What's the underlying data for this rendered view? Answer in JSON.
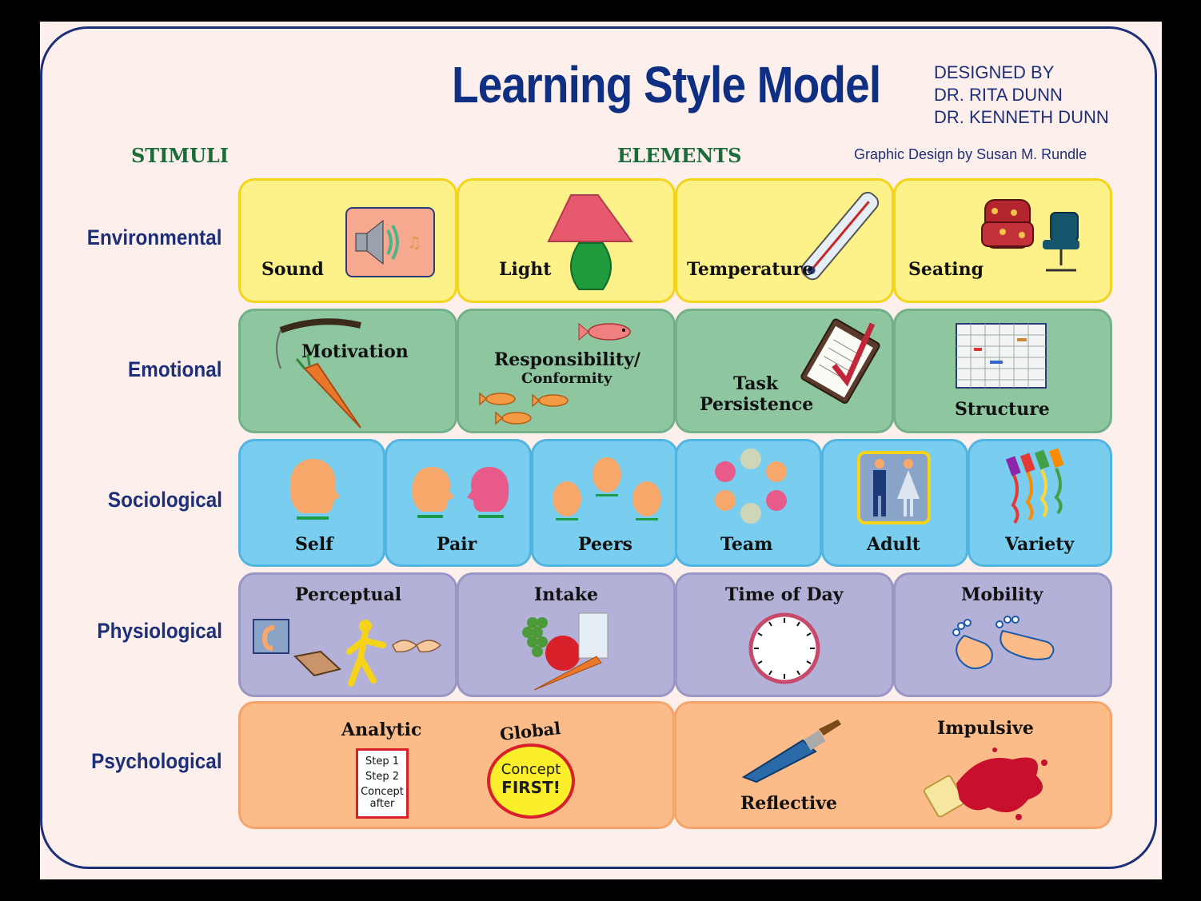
{
  "title": "Learning Style Model",
  "designed_by": [
    "DESIGNED BY",
    "DR. RITA DUNN",
    "DR. KENNETH DUNN"
  ],
  "credit": "Graphic Design by Susan M. Rundle",
  "headers": {
    "stimuli": "STIMULI",
    "elements": "ELEMENTS"
  },
  "rows": {
    "environmental": {
      "label": "Environmental",
      "elements": [
        "Sound",
        "Light",
        "Temperature",
        "Seating"
      ]
    },
    "emotional": {
      "label": "Emotional",
      "elements": [
        "Motivation",
        "Responsibility/",
        "Conformity",
        "Task",
        "Persistence",
        "Structure"
      ]
    },
    "sociological": {
      "label": "Sociological",
      "elements": [
        "Self",
        "Pair",
        "Peers",
        "Team",
        "Adult",
        "Variety"
      ]
    },
    "physiological": {
      "label": "Physiological",
      "elements": [
        "Perceptual",
        "Intake",
        "Time of Day",
        "Mobility"
      ]
    },
    "psychological": {
      "label": "Psychological",
      "elements": [
        "Analytic",
        "Global",
        "Reflective",
        "Impulsive"
      ],
      "analytic_card": [
        "Step 1",
        "Step 2",
        "Concept",
        "after"
      ],
      "global_badge": [
        "Concept",
        "FIRST!"
      ]
    }
  },
  "colors": {
    "environmental": "#fdf28a",
    "emotional": "#8ec6a0",
    "sociological": "#79cdee",
    "physiological": "#b3b1d7",
    "psychological": "#fbbc8a",
    "title": "#0f2f82",
    "header_green": "#1c6b3a"
  }
}
